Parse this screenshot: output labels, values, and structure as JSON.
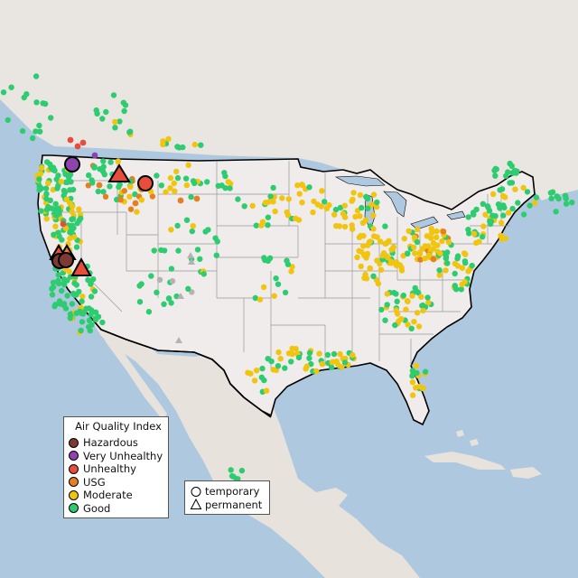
{
  "legend": {
    "title": "Air Quality Index",
    "categories": [
      {
        "label": "Hazardous",
        "color": "#7e3a32"
      },
      {
        "label": "Very Unhealthy",
        "color": "#8e44ad"
      },
      {
        "label": "Unhealthy",
        "color": "#e74c3c"
      },
      {
        "label": "USG",
        "color": "#e67e22"
      },
      {
        "label": "Moderate",
        "color": "#f1c40f"
      },
      {
        "label": "Good",
        "color": "#2ecc71"
      }
    ],
    "shapes": [
      {
        "label": "temporary",
        "shape": "circle"
      },
      {
        "label": "permanent",
        "shape": "triangle"
      }
    ]
  },
  "colors": {
    "ocean": "#aec9df",
    "land_us": "#efeceb",
    "land_other": "#e7e3dc",
    "borders": "#000000",
    "grey_sensor": "#b3b3b3"
  }
}
